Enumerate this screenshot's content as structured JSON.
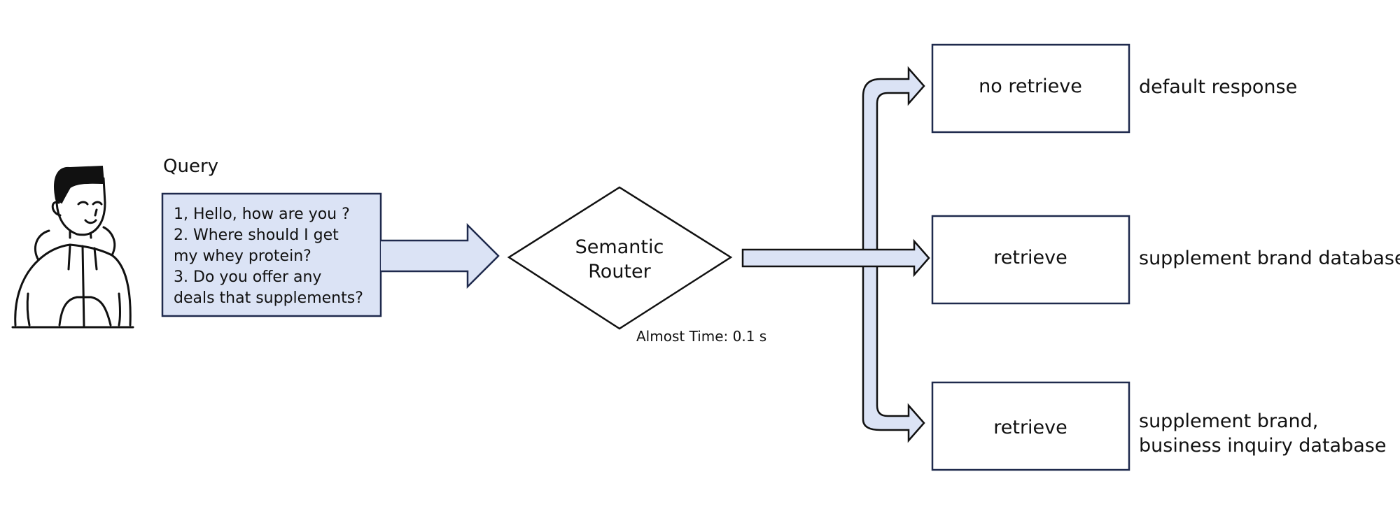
{
  "query": {
    "title": "Query",
    "lines": [
      "1, Hello, how are you ?",
      "2. Where should I get",
      "my whey protein?",
      "3. Do you offer any",
      "deals that supplements?"
    ]
  },
  "router": {
    "label_line1": "Semantic",
    "label_line2": "Router",
    "time_label": "Almost Time: 0.1 s"
  },
  "routes": [
    {
      "box_label": "no retrieve",
      "result_lines": [
        "default response"
      ]
    },
    {
      "box_label": "retrieve",
      "result_lines": [
        "supplement brand database"
      ]
    },
    {
      "box_label": "retrieve",
      "result_lines": [
        "supplement brand,",
        "business inquiry database"
      ]
    }
  ],
  "colors": {
    "fill_light_blue": "#dbe3f5",
    "stroke_navy": "#1f2a4d",
    "stroke_black": "#111111"
  }
}
